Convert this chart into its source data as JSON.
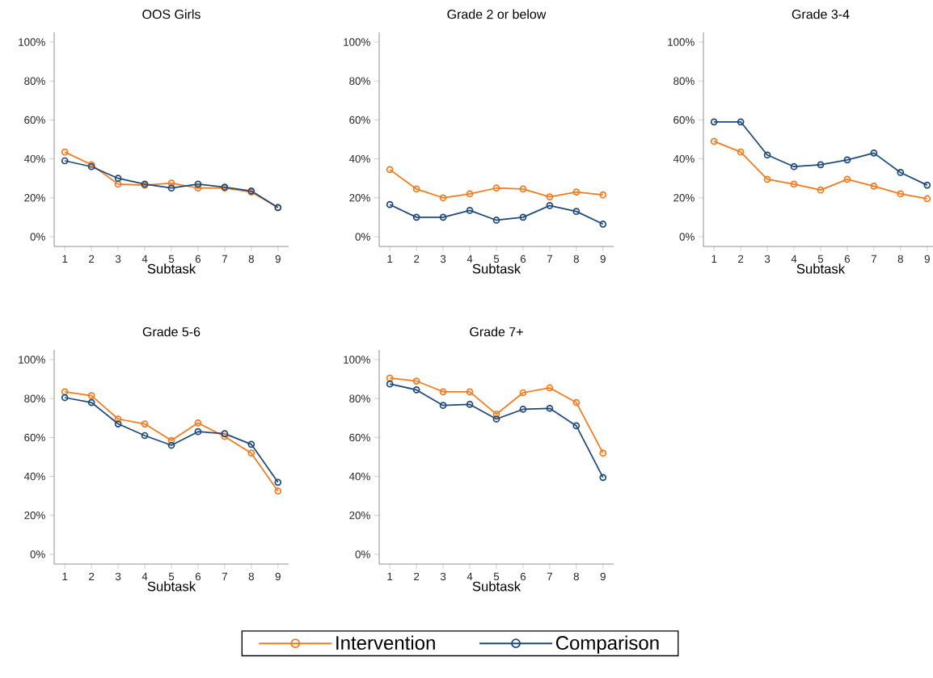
{
  "chart_data": [
    {
      "type": "line",
      "title": "OOS Girls",
      "xlabel": "Subtask",
      "x": [
        1,
        2,
        3,
        4,
        5,
        6,
        7,
        8,
        9
      ],
      "xlim": [
        0.6,
        9.4
      ],
      "xticks": [
        1,
        2,
        3,
        4,
        5,
        6,
        7,
        8,
        9
      ],
      "ylim": [
        -5,
        105
      ],
      "yticks": [
        {
          "value": 0,
          "label": "0%"
        },
        {
          "value": 20,
          "label": "20%"
        },
        {
          "value": 40,
          "label": "40%"
        },
        {
          "value": 60,
          "label": "60%"
        },
        {
          "value": 80,
          "label": "80%"
        },
        {
          "value": 100,
          "label": "100%"
        }
      ],
      "marker": "circle",
      "series": [
        {
          "color": "#f57a1c",
          "values": [
            43.5,
            37,
            27,
            26.5,
            27.5,
            25,
            25,
            23,
            15
          ]
        },
        {
          "color": "#1d4a7e",
          "values": [
            39,
            36,
            30,
            27,
            25,
            27,
            25.5,
            23.5,
            15
          ]
        }
      ]
    },
    {
      "type": "line",
      "title": "Grade 2 or below",
      "xlabel": "Subtask",
      "x": [
        1,
        2,
        3,
        4,
        5,
        6,
        7,
        8,
        9
      ],
      "xlim": [
        0.6,
        9.4
      ],
      "xticks": [
        1,
        2,
        3,
        4,
        5,
        6,
        7,
        8,
        9
      ],
      "ylim": [
        -5,
        105
      ],
      "yticks": [
        {
          "value": 0,
          "label": "0%"
        },
        {
          "value": 20,
          "label": "20%"
        },
        {
          "value": 40,
          "label": "40%"
        },
        {
          "value": 60,
          "label": "60%"
        },
        {
          "value": 80,
          "label": "80%"
        },
        {
          "value": 100,
          "label": "100%"
        }
      ],
      "marker": "circle",
      "series": [
        {
          "color": "#f57a1c",
          "values": [
            34.5,
            24.5,
            20,
            22,
            25,
            24.5,
            20.5,
            23,
            21.5
          ]
        },
        {
          "color": "#1d4a7e",
          "values": [
            16.5,
            10,
            10,
            13.5,
            8.5,
            10,
            16,
            13,
            6.5
          ]
        }
      ]
    },
    {
      "type": "line",
      "title": "Grade 3-4",
      "xlabel": "Subtask",
      "x": [
        1,
        2,
        3,
        4,
        5,
        6,
        7,
        8,
        9
      ],
      "xlim": [
        0.6,
        9.4
      ],
      "xticks": [
        1,
        2,
        3,
        4,
        5,
        6,
        7,
        8,
        9
      ],
      "ylim": [
        -5,
        105
      ],
      "yticks": [
        {
          "value": 0,
          "label": "0%"
        },
        {
          "value": 20,
          "label": "20%"
        },
        {
          "value": 40,
          "label": "40%"
        },
        {
          "value": 60,
          "label": "60%"
        },
        {
          "value": 80,
          "label": "80%"
        },
        {
          "value": 100,
          "label": "100%"
        }
      ],
      "marker": "circle",
      "series": [
        {
          "color": "#f57a1c",
          "values": [
            49,
            43.5,
            29.5,
            27,
            24,
            29.5,
            26,
            22,
            19.5
          ]
        },
        {
          "color": "#1d4a7e",
          "values": [
            59,
            59,
            42,
            36,
            37,
            39.5,
            43,
            33,
            26.5
          ]
        }
      ]
    },
    {
      "type": "line",
      "title": "Grade 5-6",
      "xlabel": "Subtask",
      "x": [
        1,
        2,
        3,
        4,
        5,
        6,
        7,
        8,
        9
      ],
      "xlim": [
        0.6,
        9.4
      ],
      "xticks": [
        1,
        2,
        3,
        4,
        5,
        6,
        7,
        8,
        9
      ],
      "ylim": [
        -5,
        105
      ],
      "yticks": [
        {
          "value": 0,
          "label": "0%"
        },
        {
          "value": 20,
          "label": "20%"
        },
        {
          "value": 40,
          "label": "40%"
        },
        {
          "value": 60,
          "label": "60%"
        },
        {
          "value": 80,
          "label": "80%"
        },
        {
          "value": 100,
          "label": "100%"
        }
      ],
      "marker": "circle",
      "series": [
        {
          "color": "#f57a1c",
          "values": [
            83.5,
            81.5,
            69.5,
            67,
            58.5,
            67.5,
            60.5,
            52,
            32.5
          ]
        },
        {
          "color": "#1d4a7e",
          "values": [
            80.5,
            78,
            67,
            61,
            56,
            63,
            62,
            56.5,
            37
          ]
        }
      ]
    },
    {
      "type": "line",
      "title": "Grade 7+",
      "xlabel": "Subtask",
      "x": [
        1,
        2,
        3,
        4,
        5,
        6,
        7,
        8,
        9
      ],
      "xlim": [
        0.6,
        9.4
      ],
      "xticks": [
        1,
        2,
        3,
        4,
        5,
        6,
        7,
        8,
        9
      ],
      "ylim": [
        -5,
        105
      ],
      "yticks": [
        {
          "value": 0,
          "label": "0%"
        },
        {
          "value": 20,
          "label": "20%"
        },
        {
          "value": 40,
          "label": "40%"
        },
        {
          "value": 60,
          "label": "60%"
        },
        {
          "value": 80,
          "label": "80%"
        },
        {
          "value": 100,
          "label": "100%"
        }
      ],
      "marker": "circle",
      "legend": "bottom",
      "series": [
        {
          "name": "Intervention",
          "color": "#f57a1c",
          "values": [
            90.5,
            89,
            83.5,
            83.5,
            72,
            83,
            85.5,
            78,
            52
          ]
        },
        {
          "name": "Comparison",
          "color": "#1d4a7e",
          "values": [
            87.5,
            84.5,
            76.5,
            77,
            69.5,
            74.5,
            75,
            66,
            39.5
          ]
        }
      ]
    }
  ]
}
